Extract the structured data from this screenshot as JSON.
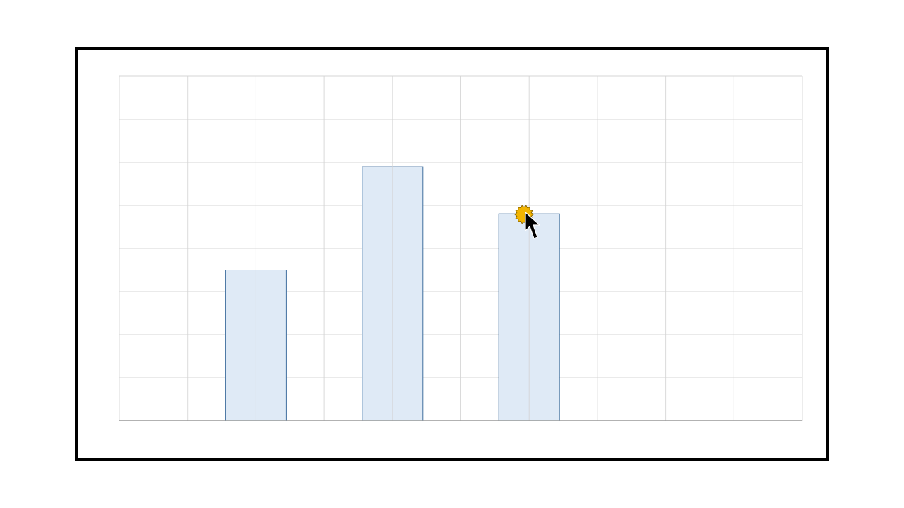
{
  "chart_data": {
    "type": "bar",
    "title": "",
    "xlabel": "",
    "ylabel": "",
    "x_slots": 10,
    "y_divisions": 8,
    "ylim": [
      0,
      8
    ],
    "bars": [
      {
        "slot_center": 2,
        "value": 3.5
      },
      {
        "slot_center": 4,
        "value": 5.9
      },
      {
        "slot_center": 6,
        "value": 4.8
      }
    ],
    "grid": true,
    "legend": "none",
    "colors": {
      "bar_fill": "#dfeaf6",
      "bar_stroke": "#3f6e9e",
      "grid": "#d4d4d4",
      "baseline": "#999999",
      "frame": "#000000"
    }
  },
  "cursor": {
    "icon": "arrow-pointer-icon",
    "highlight_icon": "click-burst-icon",
    "highlight_color": "#f2b400"
  }
}
